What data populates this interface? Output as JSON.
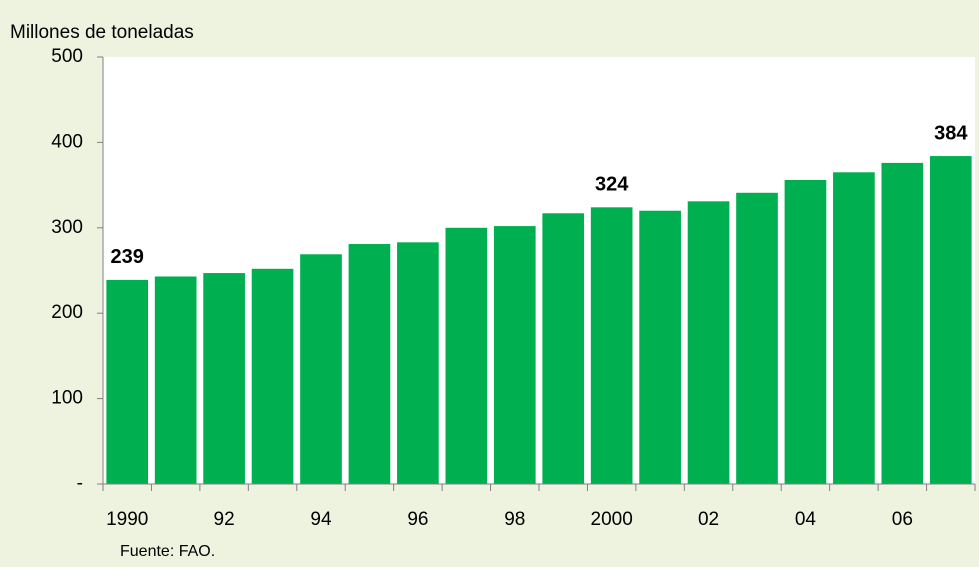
{
  "chart_data": {
    "type": "bar",
    "y_label": "Millones de toneladas",
    "source": "Fuente: FAO.",
    "categories": [
      "1990",
      null,
      "92",
      null,
      "94",
      null,
      "96",
      null,
      "98",
      null,
      "2000",
      null,
      "02",
      null,
      "04",
      null,
      "06",
      null
    ],
    "values": [
      239,
      243,
      247,
      252,
      269,
      281,
      283,
      300,
      302,
      317,
      324,
      320,
      331,
      341,
      356,
      365,
      376,
      384
    ],
    "value_labels": [
      "239",
      null,
      null,
      null,
      null,
      null,
      null,
      null,
      null,
      null,
      "324",
      null,
      null,
      null,
      null,
      null,
      null,
      "384"
    ],
    "color": "#00b050",
    "ylim": [
      0,
      500
    ],
    "yticks": [
      {
        "value": 0,
        "label": "-"
      },
      100,
      200,
      300,
      400,
      500
    ],
    "grid": false
  }
}
